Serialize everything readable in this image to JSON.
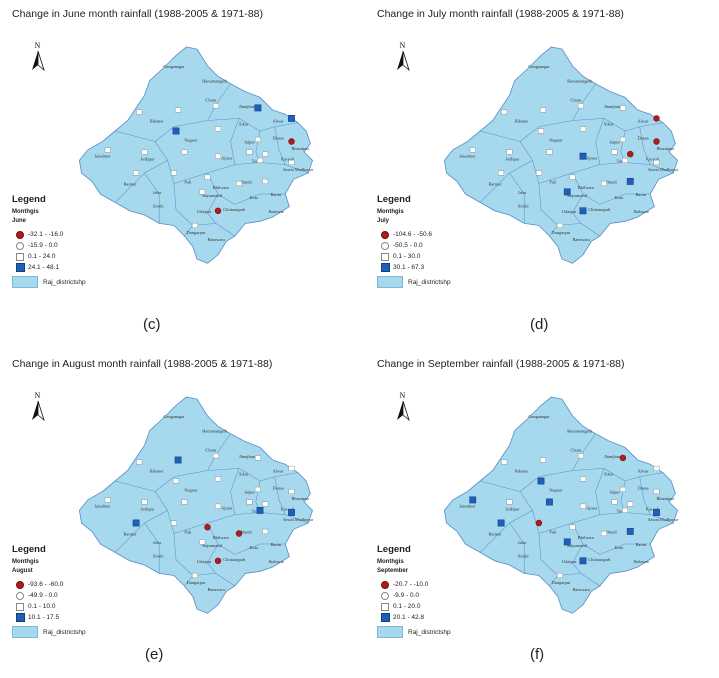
{
  "panels": [
    {
      "id": "c",
      "title": "Change in June month rainfall (1988-2005 & 1971-88)",
      "caption": "(c)",
      "legend": {
        "title": "Legend",
        "field": "Monthgis",
        "layer": "June",
        "classes": [
          {
            "symbol": "red-circle",
            "label": "-32.1 - -16.0"
          },
          {
            "symbol": "white-circle",
            "label": "-15.9 - 0.0"
          },
          {
            "symbol": "white-square",
            "label": "0.1 - 24.0"
          },
          {
            "symbol": "blue-square",
            "label": "24.1 - 48.1"
          }
        ],
        "shapefile": "Raj_districtshp"
      },
      "reds": [
        8,
        23
      ],
      "blues": [
        3,
        4,
        5
      ]
    },
    {
      "id": "d",
      "title": "Change in July month rainfall (1988-2005 & 1971-88)",
      "caption": "(d)",
      "legend": {
        "title": "Legend",
        "field": "Monthgis",
        "layer": "July",
        "classes": [
          {
            "symbol": "red-circle",
            "label": "-104.6 - -50.6"
          },
          {
            "symbol": "white-circle",
            "label": "-50.5 - 0.0"
          },
          {
            "symbol": "white-square",
            "label": "0.1 - 30.0"
          },
          {
            "symbol": "blue-square",
            "label": "30.1 - 67.3"
          }
        ],
        "shapefile": "Raj_districtshp"
      },
      "reds": [
        4,
        8,
        9
      ],
      "blues": [
        14,
        21,
        22,
        23
      ]
    },
    {
      "id": "e",
      "title": "Change in August month rainfall (1988-2005 & 1971-88)",
      "caption": "(e)",
      "legend": {
        "title": "Legend",
        "field": "Monthgis",
        "layer": "August",
        "classes": [
          {
            "symbol": "red-circle",
            "label": "-93.6 - -60.0"
          },
          {
            "symbol": "white-circle",
            "label": "-49.9 - 0.0"
          },
          {
            "symbol": "white-square",
            "label": "0.1 - 10.0"
          },
          {
            "symbol": "blue-square",
            "label": "10.1 - 17.5"
          }
        ],
        "shapefile": "Raj_districtshp"
      },
      "reds": [
        20,
        19,
        23
      ],
      "blues": [
        1,
        15,
        16,
        17
      ]
    },
    {
      "id": "f",
      "title": "Change in September rainfall (1988-2005 & 1971-88)",
      "caption": "(f)",
      "legend": {
        "title": "Legend",
        "field": "Monthgis",
        "layer": "September",
        "classes": [
          {
            "symbol": "red-circle",
            "label": "-20.7 - -10.0"
          },
          {
            "symbol": "white-circle",
            "label": "-9.9 - 0.0"
          },
          {
            "symbol": "white-square",
            "label": "0.1 - 20.0"
          },
          {
            "symbol": "blue-square",
            "label": "20.1 - 42.8"
          }
        ],
        "shapefile": "Raj_districtshp"
      },
      "reds": [
        3,
        18
      ],
      "blues": [
        5,
        11,
        13,
        16,
        17,
        21,
        22,
        23
      ]
    }
  ],
  "districts": [
    "Ganganagar",
    "Hanumangarh",
    "Churu",
    "Jhunjhunun",
    "Bikaner",
    "Sikar",
    "Alwar",
    "Jaisalmer",
    "Nagaur",
    "Jaipur",
    "Dausa",
    "Bharatpur",
    "Jodhpur",
    "Karauli",
    "Tonk",
    "Sawai Madhopur",
    "Ajmer",
    "Barmer",
    "Pali",
    "Bhilwara",
    "Bundi",
    "Kota",
    "Baran",
    "Jalor",
    "Sirohi",
    "Rajsamand",
    "Udaipur",
    "Chittaurgarh",
    "Jhalawar",
    "Dungarpur",
    "Banswara"
  ],
  "north_label": "N"
}
